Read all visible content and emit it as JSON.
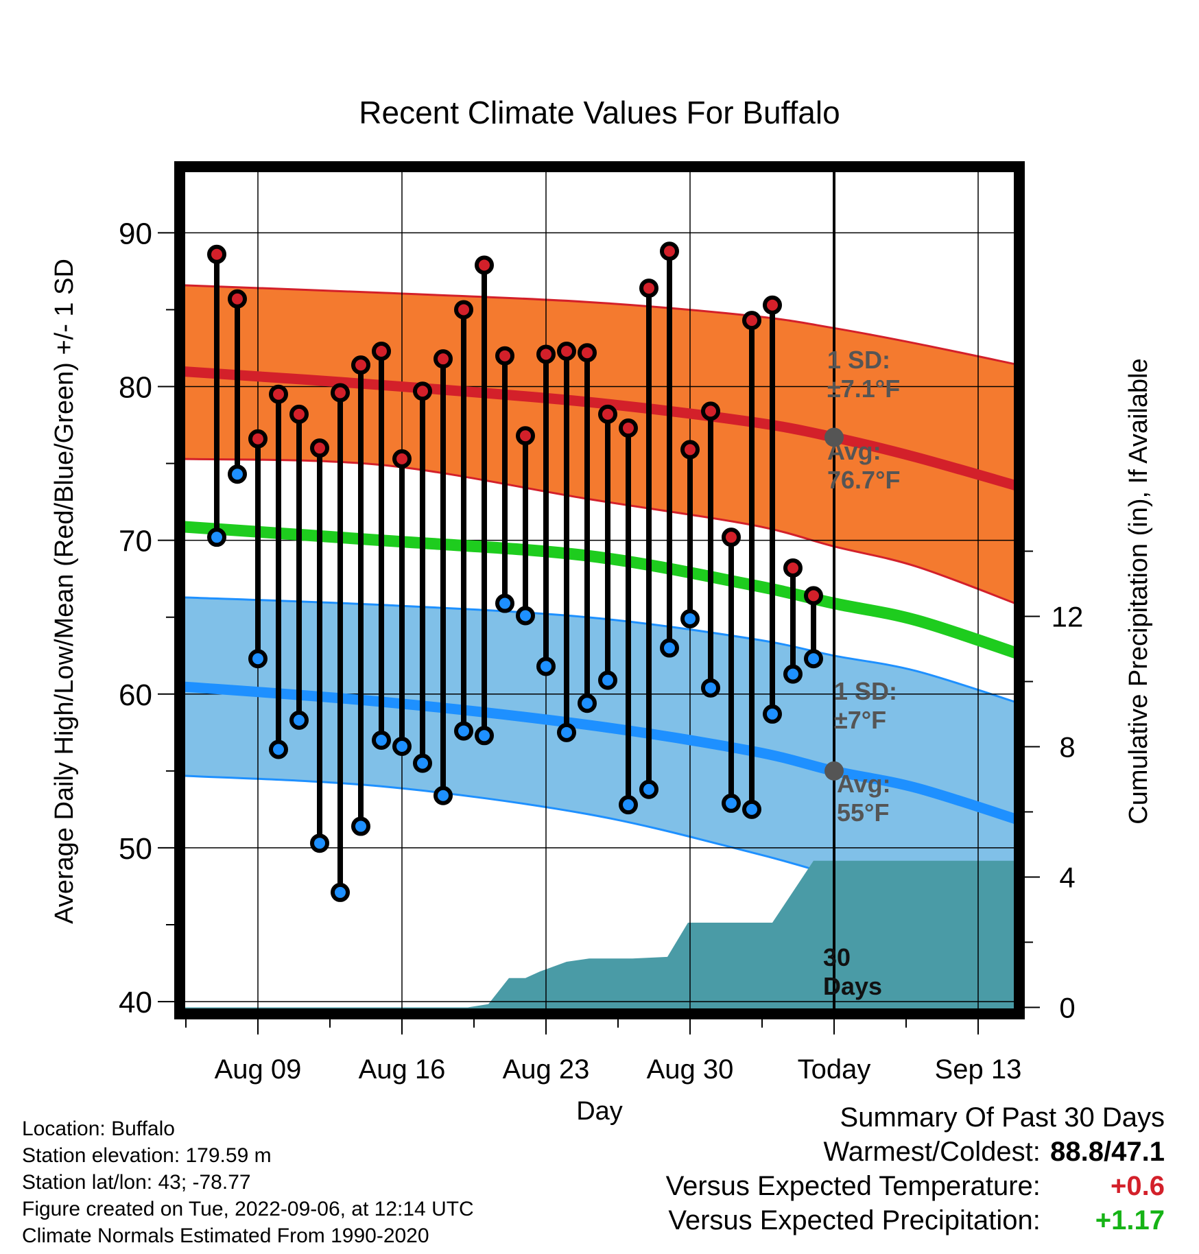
{
  "chart_data": {
    "type": "line",
    "title": "Recent Climate Values For Buffalo",
    "xlabel": "Day",
    "ylabel": "Average Daily High/Low/Mean (Red/Blue/Green) +/- 1 SD",
    "y2label": "Cumulative Precipitation (in), If Available",
    "ylim": [
      39.2,
      94.3
    ],
    "y2lim": [
      -0.2,
      25.8
    ],
    "yticks": [
      40,
      50,
      60,
      70,
      80,
      90
    ],
    "y2ticks": [
      0,
      4,
      8,
      12
    ],
    "xlim": [
      5.2,
      46.0
    ],
    "xticks": [
      {
        "day": 9,
        "label": "Aug 09"
      },
      {
        "day": 16,
        "label": "Aug 16"
      },
      {
        "day": 23,
        "label": "Aug 23"
      },
      {
        "day": 30,
        "label": "Aug 30"
      },
      {
        "day": 37,
        "label": "Today"
      },
      {
        "day": 44,
        "label": "Sep 13"
      }
    ],
    "today_day": 37,
    "highs": [
      88.6,
      85.7,
      76.6,
      79.5,
      78.2,
      76.0,
      79.6,
      81.4,
      82.3,
      75.3,
      79.7,
      81.8,
      85.0,
      87.9,
      82.0,
      76.8,
      82.1,
      82.3,
      82.2,
      78.2,
      77.3,
      86.4,
      88.8,
      75.9,
      78.4,
      70.2,
      84.3,
      85.3,
      68.2,
      66.4
    ],
    "lows": [
      70.2,
      74.3,
      62.3,
      56.4,
      58.3,
      50.3,
      47.1,
      51.4,
      57.0,
      56.6,
      55.5,
      53.4,
      57.6,
      57.3,
      65.9,
      65.1,
      61.8,
      57.5,
      59.4,
      60.9,
      52.8,
      53.8,
      63.0,
      64.9,
      60.4,
      52.9,
      52.5,
      58.7,
      61.3,
      62.3
    ],
    "normals": {
      "day": [
        5.2,
        15.0,
        25.0,
        33.0,
        37.0,
        41.0,
        46.0
      ],
      "high_avg": [
        81.0,
        80.1,
        79.0,
        77.7,
        76.7,
        75.4,
        73.5
      ],
      "high_upper": [
        86.6,
        86.1,
        85.5,
        84.6,
        83.8,
        82.8,
        81.4
      ],
      "high_lower": [
        75.3,
        74.9,
        72.7,
        71.0,
        69.6,
        68.3,
        65.8
      ],
      "low_avg": [
        60.5,
        59.5,
        58.0,
        56.3,
        55.0,
        53.9,
        51.8
      ],
      "low_upper": [
        66.3,
        65.8,
        65.0,
        63.6,
        62.5,
        61.5,
        59.4
      ],
      "low_lower": [
        54.7,
        54.0,
        52.2,
        49.7,
        48.2,
        46.6,
        44.3
      ],
      "mean": [
        70.9,
        70.0,
        69.0,
        67.1,
        65.9,
        64.8,
        62.6
      ]
    },
    "precip": {
      "day": [
        5.2,
        19.2,
        20.2,
        21.2,
        22.0,
        22.7,
        24.0,
        25.1,
        27.2,
        28.9,
        29.9,
        30.0,
        34.0,
        36.0,
        46.0
      ],
      "cum": [
        0,
        0,
        0.1,
        0.9,
        0.9,
        1.1,
        1.4,
        1.5,
        1.5,
        1.55,
        2.6,
        2.6,
        2.6,
        4.5,
        4.5
      ]
    },
    "annotations": {
      "high_sd": [
        "1 SD:",
        "±7.1°F"
      ],
      "high_avg": [
        "Avg:",
        "76.7°F"
      ],
      "low_sd": [
        "1 SD:",
        "±7°F"
      ],
      "low_avg": [
        "Avg:",
        "55°F"
      ],
      "days": [
        "30",
        "Days"
      ]
    },
    "colors": {
      "high_band": "#f47a2f",
      "high_line": "#d3202a",
      "low_band": "#80c0e8",
      "low_line": "#1e90ff",
      "mean_line": "#1ecc1e",
      "precip": "#4a9ba6",
      "high_dot": "#d3202a",
      "low_dot": "#1e90ff",
      "annotation": "#555555"
    }
  },
  "footer": {
    "location": "Location: Buffalo",
    "elevation": "Station elevation: 179.59 m",
    "latlon": "Station lat/lon: 43; -78.77",
    "created": "Figure created on Tue, 2022-09-06, at 12:14 UTC",
    "normals": "Climate Normals Estimated From 1990-2020"
  },
  "summary": {
    "title": "Summary Of Past 30 Days",
    "warmest_label": "Warmest/Coldest:",
    "warmest_value": "88.8/47.1",
    "temp_label": "Versus Expected Temperature:",
    "temp_value": "+0.6",
    "precip_label": "Versus Expected Precipitation:",
    "precip_value": "+1.17"
  }
}
